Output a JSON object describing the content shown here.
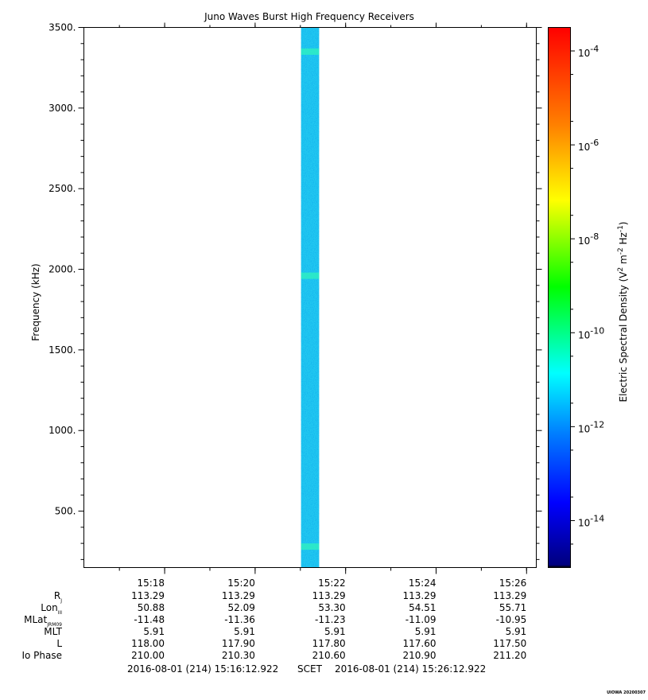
{
  "chart_data": {
    "type": "heatmap",
    "title": "Juno Waves Burst High Frequency Receivers",
    "ylabel": "Frequency (kHz)",
    "ylim": [
      150,
      3500
    ],
    "y_ticks": [
      "3500.",
      "3000.",
      "2500.",
      "2000.",
      "1500.",
      "1000.",
      "500."
    ],
    "y_tick_values": [
      3500,
      3000,
      2500,
      2000,
      1500,
      1000,
      500
    ],
    "x_ticks": [
      "15:18",
      "15:20",
      "15:22",
      "15:24",
      "15:26"
    ],
    "x_tick_values_min": [
      1.7853,
      3.7853,
      5.7853,
      7.7853,
      9.7853
    ],
    "xlim_min": [
      0,
      10
    ],
    "data_interval_min": [
      4.8,
      5.2
    ],
    "data_level_log10": -12,
    "enhanced_bands_khz": [
      3350,
      1960,
      280
    ],
    "colorbar": {
      "label": "Electric Spectral Density (V",
      "label_sup1": "2",
      "label_mid": " m",
      "label_sup2": "-2",
      "label_mid2": " Hz",
      "label_sup3": "-1",
      "label_end": ")",
      "range_log10": [
        -15,
        -3.5
      ],
      "ticks": [
        {
          "base": "10",
          "exp": "-4",
          "value": -4
        },
        {
          "base": "10",
          "exp": "-6",
          "value": -6
        },
        {
          "base": "10",
          "exp": "-8",
          "value": -8
        },
        {
          "base": "10",
          "exp": "-10",
          "value": -10
        },
        {
          "base": "10",
          "exp": "-12",
          "value": -12
        },
        {
          "base": "10",
          "exp": "-14",
          "value": -14
        }
      ]
    },
    "ephemeris": {
      "rows": [
        {
          "label": "R",
          "sub": "J",
          "values": [
            "113.29",
            "113.29",
            "113.29",
            "113.29",
            "113.29"
          ]
        },
        {
          "label": "Lon",
          "sub": "III",
          "values": [
            "50.88",
            "52.09",
            "53.30",
            "54.51",
            "55.71"
          ]
        },
        {
          "label": "MLat",
          "sub": "JRM09",
          "values": [
            "-11.48",
            "-11.36",
            "-11.23",
            "-11.09",
            "-10.95"
          ]
        },
        {
          "label": "MLT",
          "sub": "",
          "values": [
            "5.91",
            "5.91",
            "5.91",
            "5.91",
            "5.91"
          ]
        },
        {
          "label": "L",
          "sub": "",
          "values": [
            "118.00",
            "117.90",
            "117.80",
            "117.60",
            "117.50"
          ]
        },
        {
          "label": "Io Phase",
          "sub": "",
          "values": [
            "210.00",
            "210.30",
            "210.60",
            "210.90",
            "211.20"
          ]
        }
      ]
    },
    "time_range": {
      "start": "2016-08-01 (214) 15:16:12.922",
      "mid": "SCET",
      "end": "2016-08-01 (214) 15:26:12.922"
    },
    "footer_tag": "UIOWA 20200307"
  }
}
